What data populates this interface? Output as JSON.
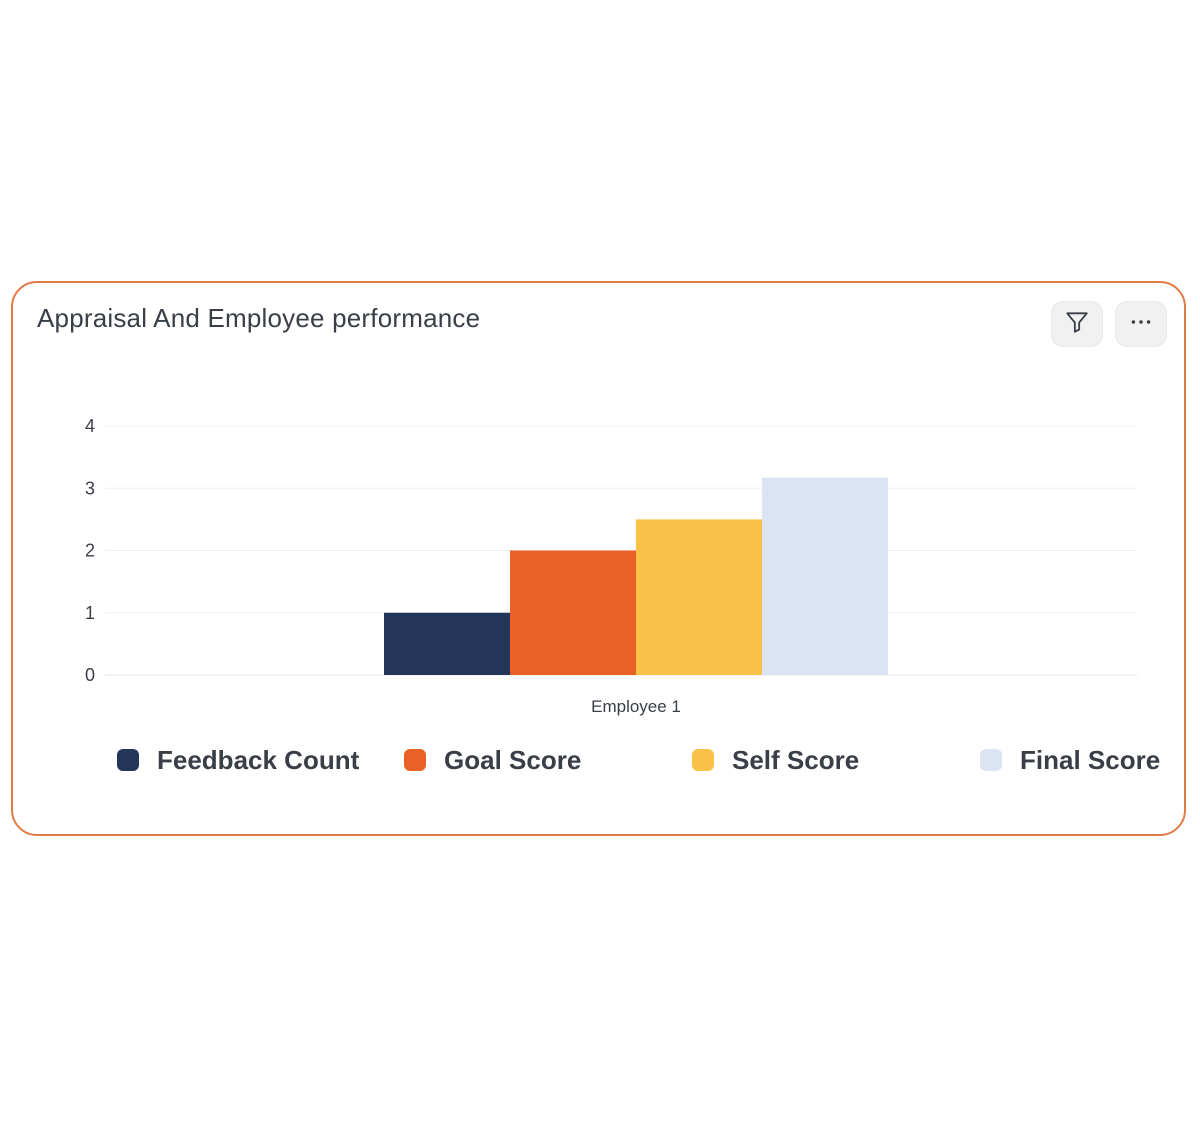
{
  "card": {
    "title": "Appraisal And Employee performance",
    "border_color": "#e07b45"
  },
  "toolbar": {
    "filter_icon": "filter-icon",
    "more_icon": "more-horizontal-icon"
  },
  "chart_data": {
    "type": "bar",
    "categories": [
      "Employee 1"
    ],
    "series": [
      {
        "name": "Feedback Count",
        "values": [
          1
        ],
        "color": "#23365a"
      },
      {
        "name": "Goal Score",
        "values": [
          2
        ],
        "color": "#ea6128"
      },
      {
        "name": "Self Score",
        "values": [
          2.5
        ],
        "color": "#fbc24a"
      },
      {
        "name": "Final Score",
        "values": [
          3.17
        ],
        "color": "#dce3f2"
      }
    ],
    "ylim": [
      0,
      4
    ],
    "yticks": [
      "0",
      "1",
      "2",
      "3",
      "4"
    ],
    "grid": true,
    "legend_position": "bottom",
    "title": "",
    "xlabel": "",
    "ylabel": ""
  }
}
